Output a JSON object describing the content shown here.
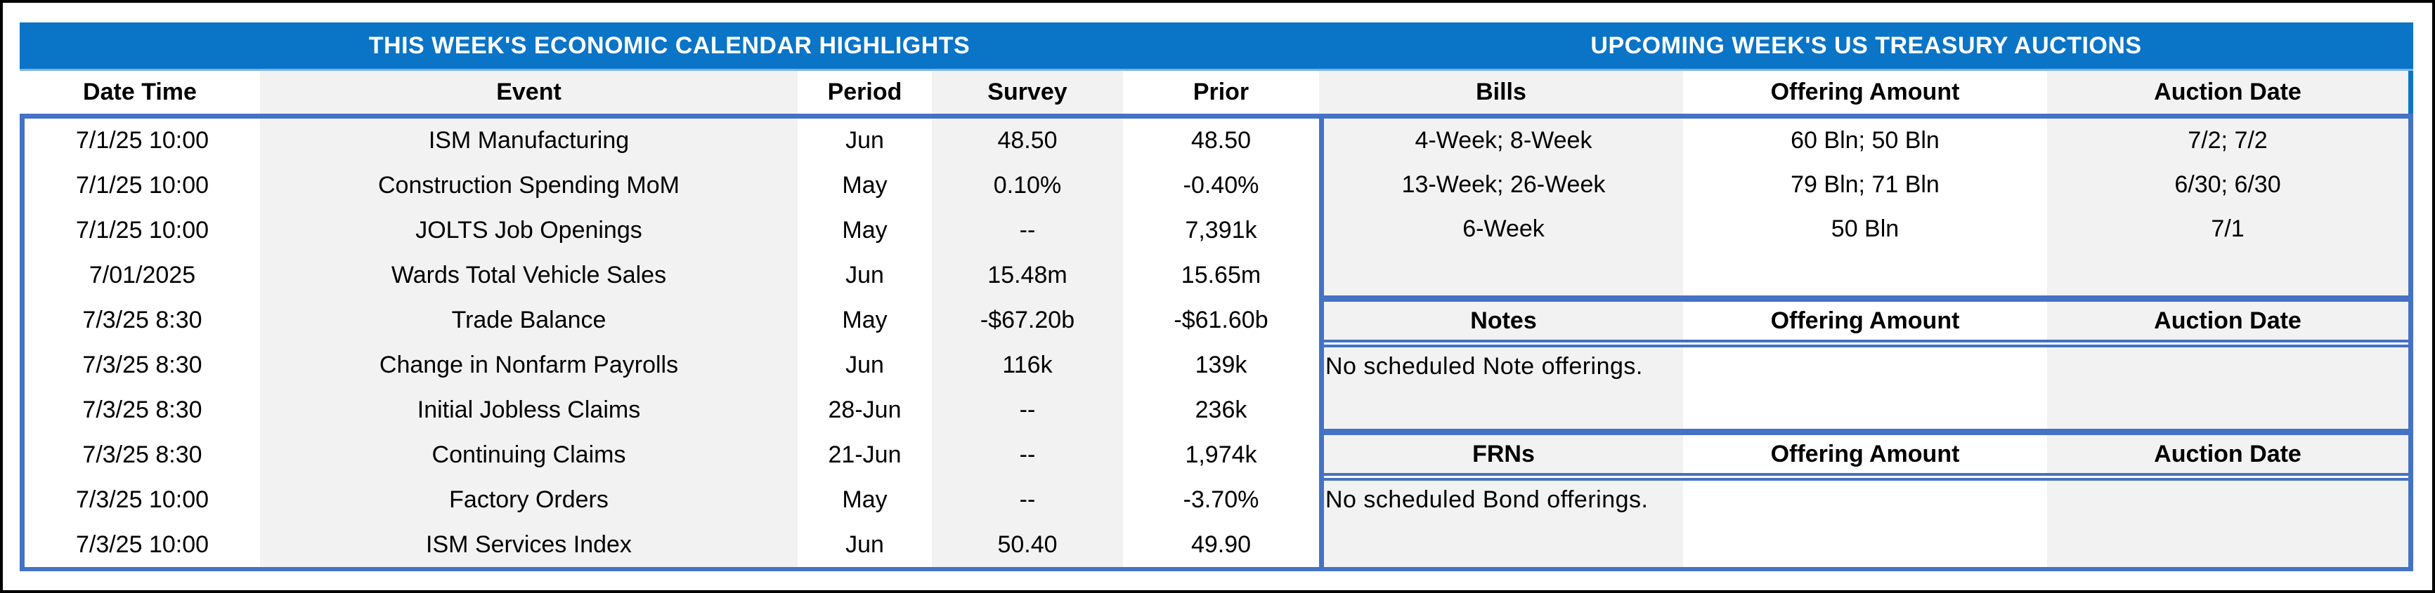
{
  "left_table": {
    "title": "THIS WEEK'S ECONOMIC CALENDAR HIGHLIGHTS",
    "columns": [
      "Date Time",
      "Event",
      "Period",
      "Survey",
      "Prior"
    ],
    "rows": [
      [
        "7/1/25 10:00",
        "ISM Manufacturing",
        "Jun",
        "48.50",
        "48.50"
      ],
      [
        "7/1/25 10:00",
        "Construction Spending MoM",
        "May",
        "0.10%",
        "-0.40%"
      ],
      [
        "7/1/25 10:00",
        "JOLTS Job Openings",
        "May",
        "--",
        "7,391k"
      ],
      [
        "7/01/2025",
        "Wards Total Vehicle Sales",
        "Jun",
        "15.48m",
        "15.65m"
      ],
      [
        "7/3/25 8:30",
        "Trade Balance",
        "May",
        "-$67.20b",
        "-$61.60b"
      ],
      [
        "7/3/25 8:30",
        "Change in Nonfarm Payrolls",
        "Jun",
        "116k",
        "139k"
      ],
      [
        "7/3/25 8:30",
        "Initial Jobless Claims",
        "28-Jun",
        "--",
        "236k"
      ],
      [
        "7/3/25 8:30",
        "Continuing Claims",
        "21-Jun",
        "--",
        "1,974k"
      ],
      [
        "7/3/25 10:00",
        "Factory Orders",
        "May",
        "--",
        "-3.70%"
      ],
      [
        "7/3/25 10:00",
        "ISM Services Index",
        "Jun",
        "50.40",
        "49.90"
      ]
    ]
  },
  "right_table": {
    "title": "UPCOMING WEEK'S US TREASURY AUCTIONS",
    "bills": {
      "header": [
        "Bills",
        "Offering Amount",
        "Auction Date"
      ],
      "rows": [
        [
          "4-Week; 8-Week",
          "60 Bln; 50 Bln",
          "7/2; 7/2"
        ],
        [
          "13-Week; 26-Week",
          "79 Bln; 71 Bln",
          "6/30; 6/30"
        ],
        [
          "6-Week",
          "50 Bln",
          "7/1"
        ],
        [
          "",
          "",
          ""
        ]
      ]
    },
    "notes": {
      "header": [
        "Notes",
        "Offering Amount",
        "Auction Date"
      ],
      "message": "No scheduled Note offerings."
    },
    "frns": {
      "header": [
        "FRNs",
        "Offering Amount",
        "Auction Date"
      ],
      "message": "No scheduled Bond offerings."
    }
  },
  "colors": {
    "title_bar": "#0A74C7",
    "divider": "#4472C4",
    "band_gray": "#F2F2F2",
    "title_text": "#FFFFFF",
    "border_black": "#000000"
  }
}
